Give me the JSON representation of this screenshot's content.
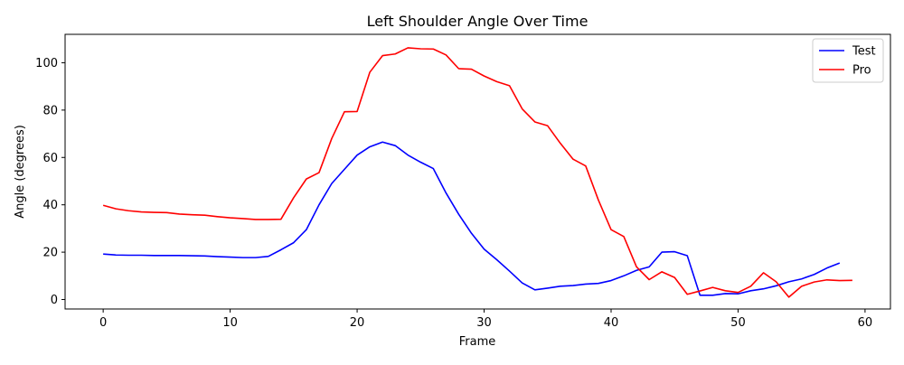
{
  "chart_data": {
    "type": "line",
    "title": "Left Shoulder Angle Over Time",
    "xlabel": "Frame",
    "ylabel": "Angle (degrees)",
    "xlim": [
      -3,
      62
    ],
    "ylim": [
      -4,
      112
    ],
    "xticks": [
      0,
      10,
      20,
      30,
      40,
      50,
      60
    ],
    "yticks": [
      0,
      20,
      40,
      60,
      80,
      100
    ],
    "grid": false,
    "legend_position": "top-right",
    "series": [
      {
        "name": "Test",
        "color": "#0000ff",
        "x": [
          0,
          1,
          2,
          3,
          4,
          5,
          6,
          7,
          8,
          9,
          10,
          11,
          12,
          13,
          14,
          15,
          16,
          17,
          18,
          19,
          20,
          21,
          22,
          23,
          24,
          25,
          26,
          27,
          28,
          29,
          30,
          31,
          32,
          33,
          34,
          35,
          36,
          37,
          38,
          39,
          40,
          41,
          42,
          43,
          44,
          45,
          46,
          47,
          48,
          49,
          50,
          51,
          52,
          53,
          54,
          55,
          56,
          57,
          58
        ],
        "values": [
          19.2,
          18.8,
          18.7,
          18.7,
          18.6,
          18.6,
          18.6,
          18.5,
          18.4,
          18.1,
          17.9,
          17.7,
          17.7,
          18.2,
          21.0,
          24.0,
          29.5,
          40.0,
          49.0,
          55.0,
          61.0,
          64.5,
          66.5,
          65.0,
          61.0,
          58.0,
          55.3,
          45.0,
          36.0,
          28.0,
          21.3,
          16.8,
          12.0,
          7.0,
          4.1,
          4.8,
          5.6,
          5.9,
          6.5,
          6.8,
          8.0,
          10.0,
          12.3,
          13.8,
          20.0,
          20.2,
          18.5,
          1.8,
          1.8,
          2.5,
          2.4,
          3.7,
          4.5,
          5.8,
          7.5,
          8.7,
          10.6,
          13.3,
          15.4
        ]
      },
      {
        "name": "Pro",
        "color": "#ff0000",
        "x": [
          0,
          1,
          2,
          3,
          4,
          5,
          6,
          7,
          8,
          9,
          10,
          11,
          12,
          13,
          14,
          15,
          16,
          17,
          18,
          19,
          20,
          21,
          22,
          23,
          24,
          25,
          26,
          27,
          28,
          29,
          30,
          31,
          32,
          33,
          34,
          35,
          36,
          37,
          38,
          39,
          40,
          41,
          42,
          43,
          44,
          45,
          46,
          47,
          48,
          49,
          50,
          51,
          52,
          53,
          54,
          55,
          56,
          57,
          58,
          59
        ],
        "values": [
          39.8,
          38.3,
          37.5,
          37.0,
          36.8,
          36.7,
          36.1,
          35.8,
          35.6,
          35.0,
          34.5,
          34.2,
          33.8,
          33.8,
          33.9,
          43.0,
          50.9,
          53.6,
          68.0,
          79.3,
          79.4,
          96.0,
          103.0,
          103.7,
          106.3,
          105.9,
          105.8,
          103.3,
          97.5,
          97.3,
          94.4,
          92.0,
          90.3,
          80.5,
          75.0,
          73.4,
          66.0,
          59.3,
          56.4,
          42.0,
          29.5,
          26.6,
          13.8,
          8.4,
          11.7,
          9.3,
          2.2,
          3.6,
          5.1,
          3.7,
          3.0,
          5.6,
          11.3,
          7.5,
          1.0,
          5.6,
          7.4,
          8.3,
          8.0,
          8.1
        ]
      }
    ]
  }
}
